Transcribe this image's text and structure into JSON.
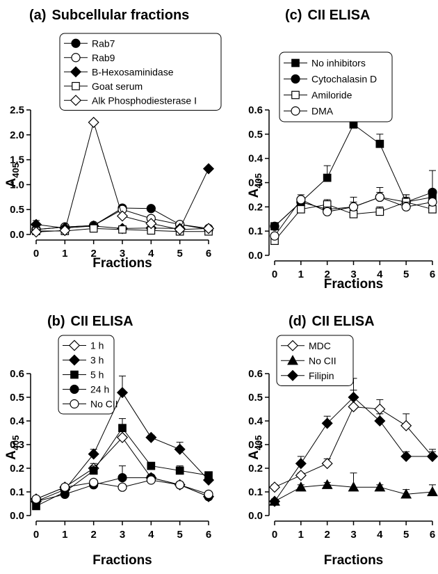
{
  "chart_data": [
    {
      "type": "line",
      "panel": "(a)",
      "title": "Subcellular fractions",
      "xlabel": "Fractions",
      "ylabel": "A",
      "ylabel_sub": "405",
      "xlim": [
        0,
        6
      ],
      "ylim": [
        0,
        2.5
      ],
      "xticks": [
        "0",
        "1",
        "2",
        "3",
        "4",
        "5",
        "6"
      ],
      "yticks": [
        "0.0",
        "0.5",
        "1.0",
        "1.5",
        "2.0",
        "2.5"
      ],
      "grid": false,
      "legend": "top",
      "x": [
        0,
        1,
        2,
        3,
        4,
        5,
        6
      ],
      "series": [
        {
          "name": "Rab7",
          "marker": "circle",
          "fill": "black",
          "values": [
            0.1,
            0.15,
            0.18,
            0.53,
            0.52,
            0.2,
            0.1
          ],
          "error": [
            0.18,
            0.02,
            0.03,
            0.03,
            0.03,
            0.02,
            0.02
          ]
        },
        {
          "name": "Rab9",
          "marker": "circle",
          "fill": "white",
          "values": [
            0.1,
            0.15,
            0.18,
            0.5,
            0.32,
            0.2,
            0.12
          ],
          "error": [
            0.02,
            0.02,
            0.03,
            0.03,
            0.03,
            0.02,
            0.02
          ]
        },
        {
          "name": "B-Hexosaminidase",
          "marker": "diamond",
          "fill": "black",
          "values": [
            0.2,
            0.13,
            0.17,
            0.12,
            0.13,
            0.12,
            1.32
          ],
          "error": [
            0.02,
            0.02,
            0.02,
            0.02,
            0.02,
            0.02,
            0.03
          ]
        },
        {
          "name": "Goat serum",
          "marker": "square",
          "fill": "white",
          "values": [
            0.07,
            0.07,
            0.12,
            0.1,
            0.08,
            0.06,
            0.06
          ],
          "error": [
            0,
            0,
            0,
            0,
            0,
            0,
            0
          ]
        },
        {
          "name": "Alk Phosphodiesterase I",
          "marker": "diamond",
          "fill": "white",
          "values": [
            0.05,
            0.08,
            2.25,
            0.37,
            0.22,
            0.1,
            0.12
          ],
          "error": [
            0,
            0,
            0,
            0,
            0,
            0,
            0
          ]
        }
      ]
    },
    {
      "type": "line",
      "panel": "(b)",
      "title": "CII ELISA",
      "xlabel": "Fractions",
      "ylabel": "A",
      "ylabel_sub": "405",
      "xlim": [
        0,
        6
      ],
      "ylim": [
        0,
        0.6
      ],
      "xticks": [
        "0",
        "1",
        "2",
        "3",
        "4",
        "5",
        "6"
      ],
      "yticks": [
        "0.0",
        "0.1",
        "0.2",
        "0.3",
        "0.4",
        "0.5",
        "0.6"
      ],
      "grid": false,
      "legend": "top-left",
      "x": [
        0,
        1,
        2,
        3,
        4,
        5,
        6
      ],
      "series": [
        {
          "name": "1 h",
          "marker": "diamond",
          "fill": "white",
          "values": [
            0.07,
            0.12,
            0.2,
            0.33,
            0.16,
            0.13,
            0.08
          ],
          "error": [
            0.01,
            0.01,
            0.02,
            0.04,
            0.01,
            0.01,
            0.01
          ]
        },
        {
          "name": "3 h",
          "marker": "diamond",
          "fill": "black",
          "values": [
            0.06,
            0.11,
            0.26,
            0.52,
            0.33,
            0.28,
            0.15
          ],
          "error": [
            0.01,
            0.01,
            0.02,
            0.07,
            0.01,
            0.03,
            0.02
          ]
        },
        {
          "name": "5 h",
          "marker": "square",
          "fill": "black",
          "values": [
            0.04,
            0.1,
            0.19,
            0.37,
            0.21,
            0.19,
            0.17
          ],
          "error": [
            0.01,
            0.01,
            0.02,
            0.04,
            0.01,
            0.02,
            0.01
          ]
        },
        {
          "name": "24 h",
          "marker": "circle",
          "fill": "black",
          "values": [
            0.06,
            0.09,
            0.13,
            0.16,
            0.16,
            0.13,
            0.08
          ],
          "error": [
            0.01,
            0.01,
            0.01,
            0.05,
            0.01,
            0.01,
            0.01
          ]
        },
        {
          "name": "No CII",
          "marker": "circle",
          "fill": "white",
          "values": [
            0.07,
            0.12,
            0.14,
            0.12,
            0.15,
            0.13,
            0.09
          ],
          "error": [
            0.01,
            0.01,
            0.01,
            0.01,
            0.01,
            0.01,
            0.01
          ]
        }
      ]
    },
    {
      "type": "line",
      "panel": "(c)",
      "title": "CII ELISA",
      "xlabel": "Fractions",
      "ylabel": "A",
      "ylabel_sub": "405",
      "xlim": [
        0,
        6
      ],
      "ylim": [
        0,
        0.6
      ],
      "xticks": [
        "0",
        "1",
        "2",
        "3",
        "4",
        "5",
        "6"
      ],
      "yticks": [
        "0.0",
        "0.1",
        "0.2",
        "0.3",
        "0.4",
        "0.5",
        "0.6"
      ],
      "grid": false,
      "legend": "top-left",
      "x": [
        0,
        1,
        2,
        3,
        4,
        5,
        6
      ],
      "series": [
        {
          "name": "No inhibitors",
          "marker": "square",
          "fill": "black",
          "values": [
            0.12,
            0.22,
            0.32,
            0.54,
            0.46,
            0.22,
            0.24
          ],
          "error": [
            0.01,
            0.02,
            0.05,
            0.03,
            0.04,
            0.03,
            0.03
          ]
        },
        {
          "name": "Cytochalasin D",
          "marker": "circle",
          "fill": "black",
          "values": [
            0.12,
            0.22,
            0.19,
            0.2,
            0.24,
            0.22,
            0.26
          ],
          "error": [
            0.01,
            0.02,
            0.02,
            0.04,
            0.04,
            0.03,
            0.09
          ]
        },
        {
          "name": "Amiloride",
          "marker": "square",
          "fill": "white",
          "values": [
            0.06,
            0.19,
            0.21,
            0.17,
            0.18,
            0.22,
            0.19
          ],
          "error": [
            0.01,
            0.02,
            0.02,
            0.02,
            0.02,
            0.02,
            0.02
          ]
        },
        {
          "name": "DMA",
          "marker": "circle",
          "fill": "white",
          "values": [
            0.08,
            0.23,
            0.18,
            0.2,
            0.24,
            0.2,
            0.22
          ],
          "error": [
            0.01,
            0.02,
            0.02,
            0.02,
            0.02,
            0.02,
            0.02
          ]
        }
      ]
    },
    {
      "type": "line",
      "panel": "(d)",
      "title": "CII ELISA",
      "xlabel": "Fractions",
      "ylabel": "A",
      "ylabel_sub": "405",
      "xlim": [
        0,
        6
      ],
      "ylim": [
        0,
        0.6
      ],
      "xticks": [
        "0",
        "1",
        "2",
        "3",
        "4",
        "5",
        "6"
      ],
      "yticks": [
        "0.0",
        "0.1",
        "0.2",
        "0.3",
        "0.4",
        "0.5",
        "0.6"
      ],
      "grid": false,
      "legend": "top-left",
      "x": [
        0,
        1,
        2,
        3,
        4,
        5,
        6
      ],
      "series": [
        {
          "name": "MDC",
          "marker": "diamond",
          "fill": "white",
          "values": [
            0.12,
            0.17,
            0.22,
            0.46,
            0.45,
            0.38,
            0.25
          ],
          "error": [
            0.01,
            0.01,
            0.02,
            0.12,
            0.04,
            0.05,
            0.03
          ]
        },
        {
          "name": "No CII",
          "marker": "triangle",
          "fill": "black",
          "values": [
            0.06,
            0.12,
            0.13,
            0.12,
            0.12,
            0.09,
            0.1
          ],
          "error": [
            0.01,
            0.01,
            0.01,
            0.06,
            0.01,
            0.02,
            0.03
          ]
        },
        {
          "name": "Filipin",
          "marker": "diamond",
          "fill": "black",
          "values": [
            0.06,
            0.22,
            0.39,
            0.5,
            0.4,
            0.25,
            0.25
          ],
          "error": [
            0.01,
            0.03,
            0.03,
            0.03,
            0.03,
            0.02,
            0.02
          ]
        }
      ]
    }
  ]
}
